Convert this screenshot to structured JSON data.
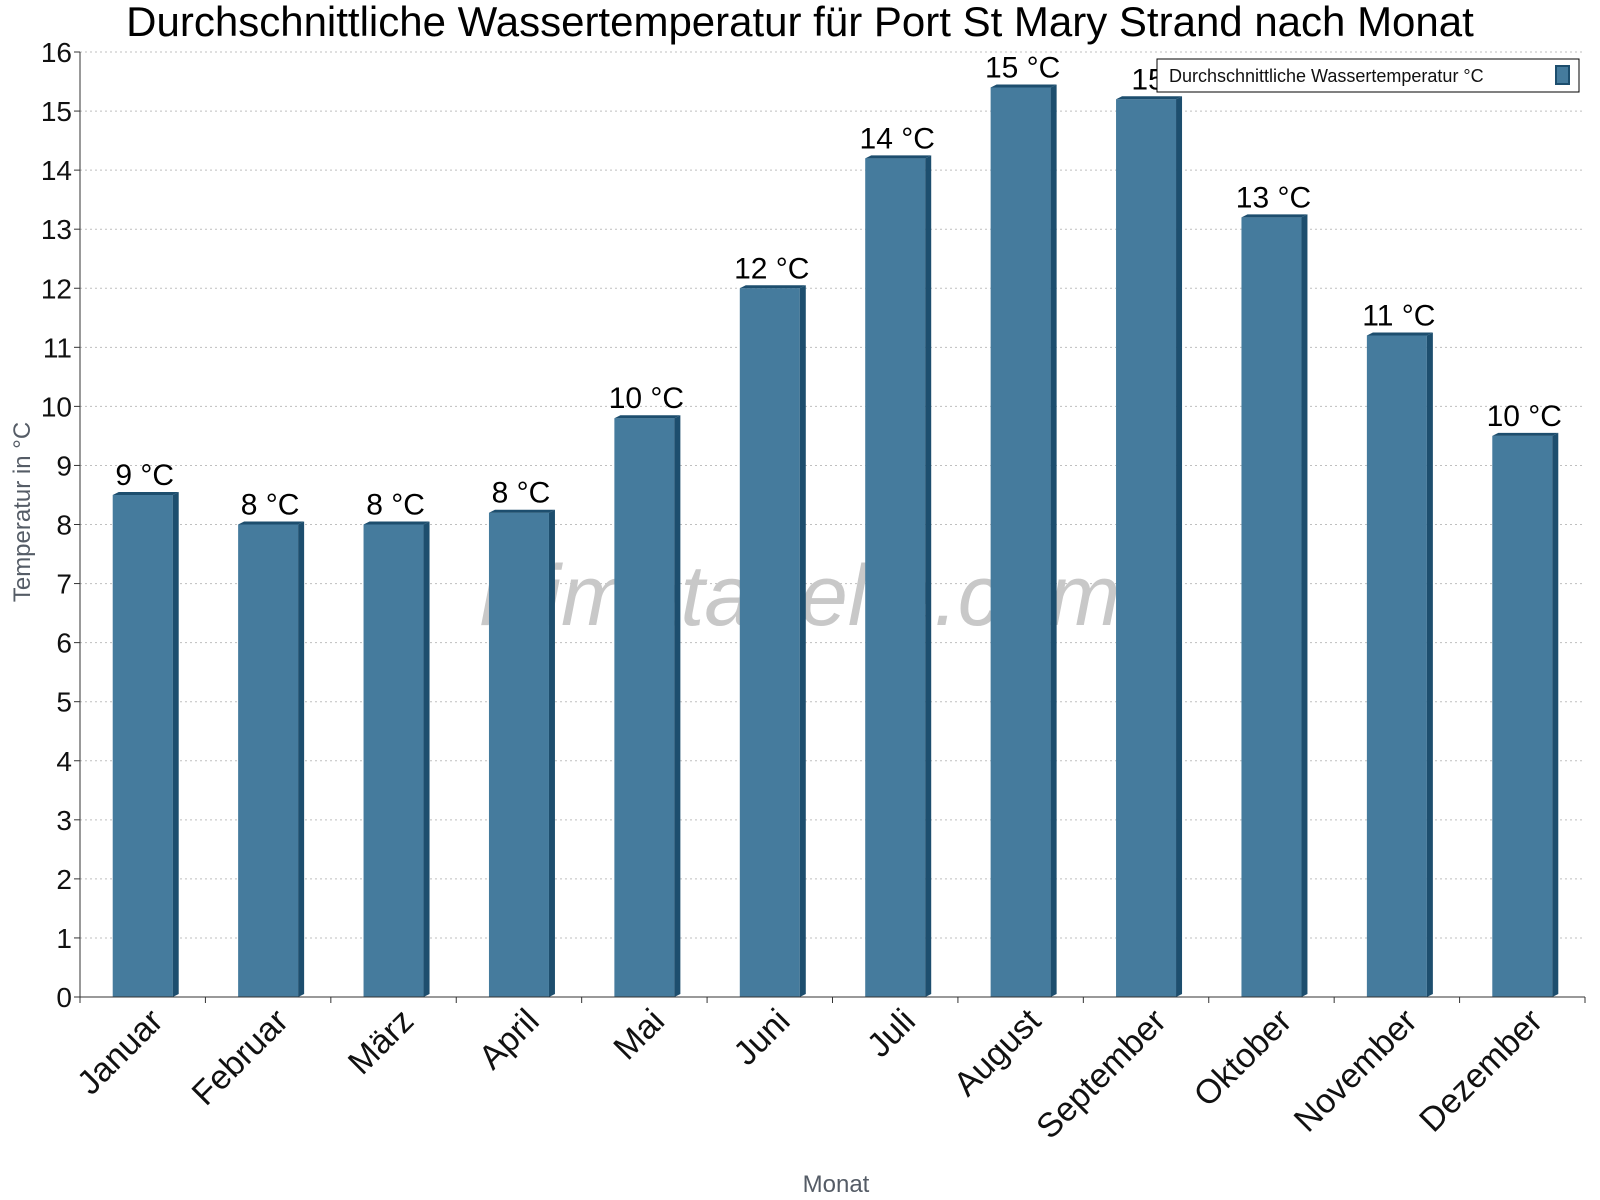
{
  "chart_data": {
    "type": "bar",
    "title": "Durchschnittliche Wassertemperatur für Port St Mary Strand nach Monat",
    "xlabel": "Monat",
    "ylabel": "Temperatur in °C",
    "categories": [
      "Januar",
      "Februar",
      "März",
      "April",
      "Mai",
      "Juni",
      "Juli",
      "August",
      "September",
      "Oktober",
      "November",
      "Dezember"
    ],
    "series": [
      {
        "name": "Durchschnittliche Wassertemperatur °C",
        "values": [
          8.5,
          8.0,
          8.0,
          8.2,
          9.8,
          12.0,
          14.2,
          15.4,
          15.2,
          13.2,
          11.2,
          9.5
        ],
        "labels": [
          "9 °C",
          "8 °C",
          "8 °C",
          "8 °C",
          "10 °C",
          "12 °C",
          "14 °C",
          "15 °C",
          "15",
          "13 °C",
          "11 °C",
          "10 °C"
        ],
        "color": "#457b9d",
        "edge_color": "#1d4e6e"
      }
    ],
    "ylim": [
      0,
      16
    ],
    "yticks": [
      0,
      1,
      2,
      3,
      4,
      5,
      6,
      7,
      8,
      9,
      10,
      11,
      12,
      13,
      14,
      15,
      16
    ],
    "grid": true,
    "legend_position": "top-right",
    "watermark": "klimatabelle.com"
  }
}
